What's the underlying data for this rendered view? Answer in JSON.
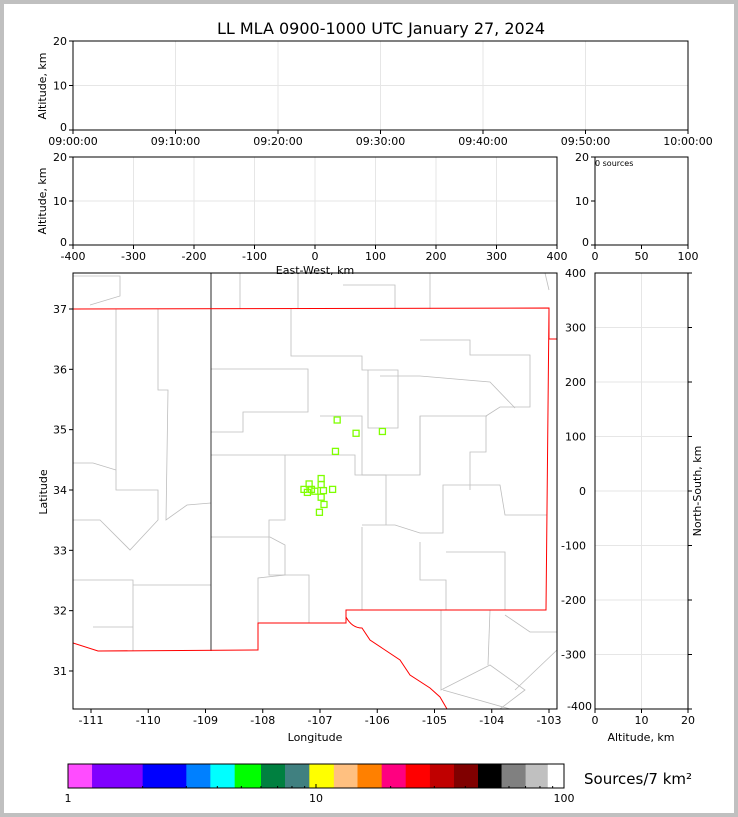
{
  "title": "LL MLA 0900-1000 UTC January 27, 2024",
  "chart_data": [
    {
      "type": "scatter",
      "panel": "altitude-vs-time",
      "ylabel": "Altitude, km",
      "ylim": [
        0,
        20
      ],
      "yticks": [
        "0",
        "10",
        "20"
      ],
      "xticks": [
        "09:00:00",
        "09:10:00",
        "09:20:00",
        "09:30:00",
        "09:40:00",
        "09:50:00",
        "10:00:00"
      ],
      "grid": true,
      "points": []
    },
    {
      "type": "scatter",
      "panel": "altitude-vs-east-west",
      "ylabel": "Altitude, km",
      "xlabel": "East-West, km",
      "xlim": [
        -400,
        400
      ],
      "ylim": [
        0,
        20
      ],
      "xticks": [
        "-400",
        "-300",
        "-200",
        "-100",
        "0",
        "100",
        "200",
        "300",
        "400"
      ],
      "yticks": [
        "0",
        "10",
        "20"
      ],
      "grid": true,
      "points": []
    },
    {
      "type": "histogram",
      "panel": "altitude-histogram",
      "annotation": "0 sources",
      "xlim": [
        0,
        100
      ],
      "ylim": [
        0,
        20
      ],
      "xticks": [
        "0",
        "50",
        "100"
      ],
      "yticks": [
        "0",
        "10",
        "20"
      ],
      "values": []
    },
    {
      "type": "scatter",
      "panel": "plan-view",
      "xlabel": "Longitude",
      "ylabel": "Latitude",
      "xlim": [
        -111.3,
        -102.85
      ],
      "ylim": [
        30.4,
        37.6
      ],
      "xticks": [
        "-111",
        "-110",
        "-109",
        "-108",
        "-107",
        "-106",
        "-105",
        "-104",
        "-103"
      ],
      "yticks": [
        "31",
        "32",
        "33",
        "34",
        "35",
        "36",
        "37"
      ],
      "marker_color": "#7fff00",
      "points": [
        [
          -106.7,
          35.16
        ],
        [
          -106.37,
          34.94
        ],
        [
          -105.91,
          34.97
        ],
        [
          -106.73,
          34.64
        ],
        [
          -106.98,
          34.19
        ],
        [
          -107.19,
          34.1
        ],
        [
          -106.98,
          34.09
        ],
        [
          -107.28,
          34.01
        ],
        [
          -107.15,
          34.01
        ],
        [
          -107.09,
          33.98
        ],
        [
          -106.94,
          33.99
        ],
        [
          -106.78,
          34.01
        ],
        [
          -107.22,
          33.96
        ],
        [
          -106.98,
          33.88
        ],
        [
          -106.93,
          33.76
        ],
        [
          -107.01,
          33.63
        ]
      ]
    },
    {
      "type": "scatter",
      "panel": "north-south-vs-altitude",
      "xlabel": "Altitude, km",
      "ylabel": "North-South, km",
      "xlim": [
        0,
        20
      ],
      "ylim": [
        -400,
        400
      ],
      "xticks": [
        "0",
        "10",
        "20"
      ],
      "yticks": [
        "-400",
        "-300",
        "-200",
        "-100",
        "0",
        "100",
        "200",
        "300",
        "400"
      ],
      "grid": true,
      "points": []
    }
  ],
  "colorbar": {
    "label": "Sources/7 km²",
    "ticks": [
      "1",
      "10",
      "100"
    ],
    "colors": [
      "#ff4cff",
      "#8000ff",
      "#0000ff",
      "#0080ff",
      "#00ffff",
      "#00ff00",
      "#008040",
      "#408080",
      "#ffff00",
      "#ffc080",
      "#ff8000",
      "#ff0080",
      "#ff0000",
      "#c00000",
      "#800000",
      "#000000",
      "#808080",
      "#c0c0c0",
      "#ffffff"
    ]
  }
}
